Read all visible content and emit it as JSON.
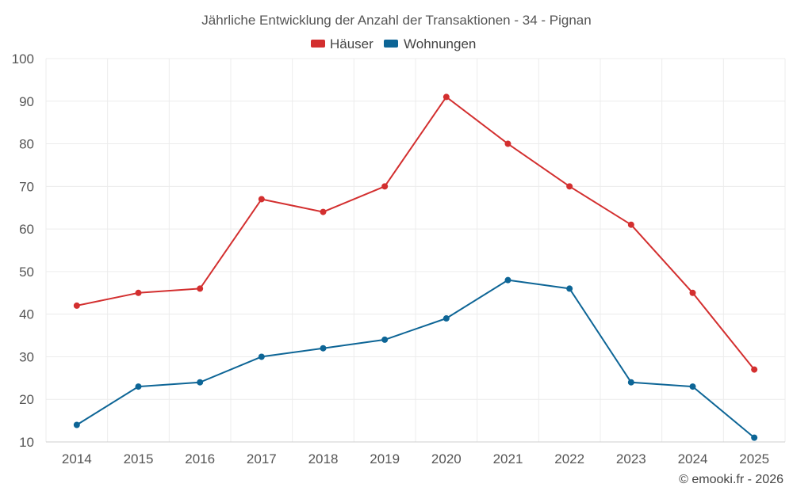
{
  "chart_data": {
    "type": "line",
    "title": "Jährliche Entwicklung der Anzahl der Transaktionen - 34 - Pignan",
    "categories": [
      "2014",
      "2015",
      "2016",
      "2017",
      "2018",
      "2019",
      "2020",
      "2021",
      "2022",
      "2023",
      "2024",
      "2025"
    ],
    "series": [
      {
        "name": "Häuser",
        "color": "#d32f2f",
        "values": [
          42,
          45,
          46,
          67,
          64,
          70,
          91,
          80,
          70,
          61,
          45,
          27
        ]
      },
      {
        "name": "Wohnungen",
        "color": "#0d6596",
        "values": [
          14,
          23,
          24,
          30,
          32,
          34,
          39,
          48,
          46,
          24,
          23,
          11
        ]
      }
    ],
    "xlabel": "",
    "ylabel": "",
    "ylim": [
      10,
      100
    ],
    "yticks": [
      "10",
      "20",
      "30",
      "40",
      "50",
      "60",
      "70",
      "80",
      "90",
      "100"
    ],
    "grid": true,
    "legend_position": "top-center"
  },
  "credit": "© emooki.fr - 2026"
}
